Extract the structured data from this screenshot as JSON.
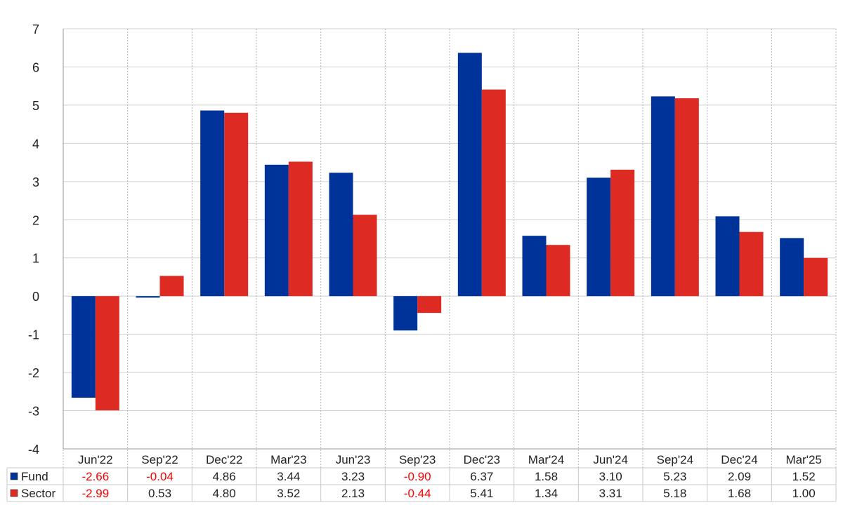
{
  "chart_data": {
    "type": "bar",
    "categories": [
      "Jun'22",
      "Sep'22",
      "Dec'22",
      "Mar'23",
      "Jun'23",
      "Sep'23",
      "Dec'23",
      "Mar'24",
      "Jun'24",
      "Sep'24",
      "Dec'24",
      "Mar'25"
    ],
    "series": [
      {
        "name": "Fund",
        "color": "#003399",
        "values": [
          -2.66,
          -0.04,
          4.86,
          3.44,
          3.23,
          -0.9,
          6.37,
          1.58,
          3.1,
          5.23,
          2.09,
          1.52
        ],
        "labels": [
          "-2.66",
          "-0.04",
          "4.86",
          "3.44",
          "3.23",
          "-0.90",
          "6.37",
          "1.58",
          "3.10",
          "5.23",
          "2.09",
          "1.52"
        ]
      },
      {
        "name": "Sector",
        "color": "#dd2a22",
        "values": [
          -2.99,
          0.53,
          4.8,
          3.52,
          2.13,
          -0.44,
          5.41,
          1.34,
          3.31,
          5.18,
          1.68,
          1.0
        ],
        "labels": [
          "-2.99",
          "0.53",
          "4.80",
          "3.52",
          "2.13",
          "-0.44",
          "5.41",
          "1.34",
          "3.31",
          "5.18",
          "1.68",
          "1.00"
        ]
      }
    ],
    "ylim": [
      -4,
      7
    ],
    "yticks": [
      -4,
      -3,
      -2,
      -1,
      0,
      1,
      2,
      3,
      4,
      5,
      6,
      7
    ],
    "grid": true,
    "legend": "data-table-below",
    "negative_value_color": "#ff0000",
    "title": "",
    "xlabel": "",
    "ylabel": ""
  }
}
